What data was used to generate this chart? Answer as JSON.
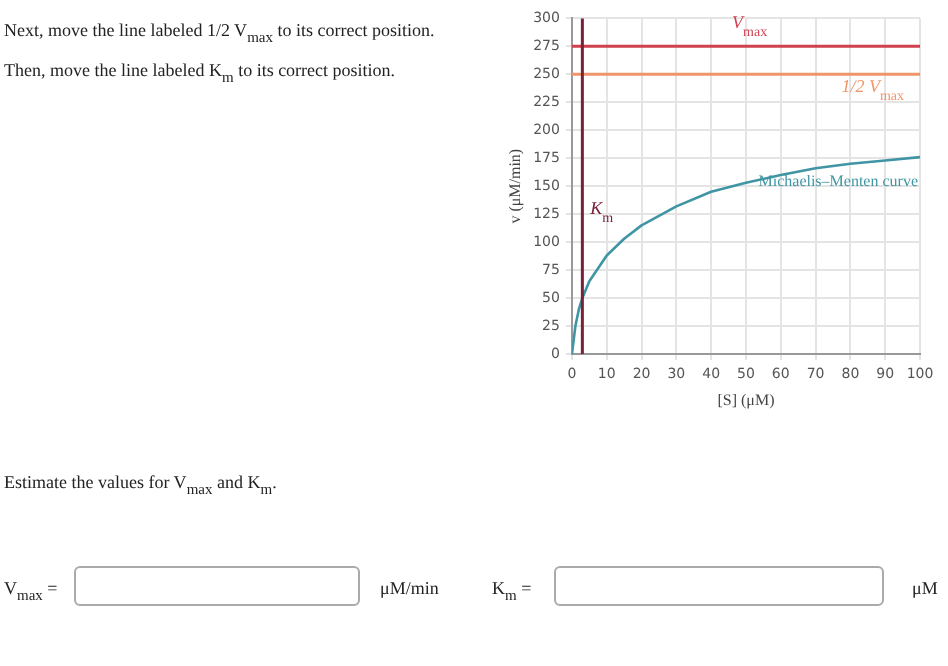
{
  "chart_data": {
    "type": "line",
    "xlabel": "[S] (μM)",
    "ylabel": "v (μM/min)",
    "x": [
      0,
      1,
      2,
      3,
      5,
      10,
      15,
      20,
      30,
      40,
      50,
      60,
      70,
      80,
      90,
      100
    ],
    "series": [
      {
        "name": "Michaelis–Menten curve",
        "color": "#3f95a3",
        "values": [
          0,
          25,
          40,
          50,
          65,
          88,
          103,
          115,
          132,
          145,
          153,
          160,
          166,
          170,
          173,
          176
        ]
      }
    ],
    "xlim": [
      0,
      100
    ],
    "xticks": [
      0,
      10,
      20,
      30,
      40,
      50,
      60,
      70,
      80,
      90,
      100
    ],
    "ylim": [
      0,
      300
    ],
    "yticks": [
      0,
      25,
      50,
      75,
      100,
      125,
      150,
      175,
      200,
      225,
      250,
      275,
      300
    ],
    "ref_lines": [
      {
        "axis": "y",
        "value": 275,
        "label": "V$_{max}$",
        "color": "#d0404e"
      },
      {
        "axis": "y",
        "value": 250,
        "label": "1/2 V$_{max}$",
        "color": "#f0956a"
      },
      {
        "axis": "x",
        "value": 3,
        "label": "K$_{m}$",
        "color": "#7a2038"
      }
    ],
    "grid": true,
    "legend": false,
    "marker": "none",
    "line_style": "solid",
    "annotations": [
      "Next, move the line labeled 1/2 V$_{max}$ to its correct position.",
      "Then, move the line labeled K$_{m}$ to its correct position.",
      "Estimate the values for V$_{max}$ and K$_{m}$.",
      "V$_{max}$ =",
      "μM/min",
      "K$_{m}$ =",
      "μM"
    ]
  }
}
